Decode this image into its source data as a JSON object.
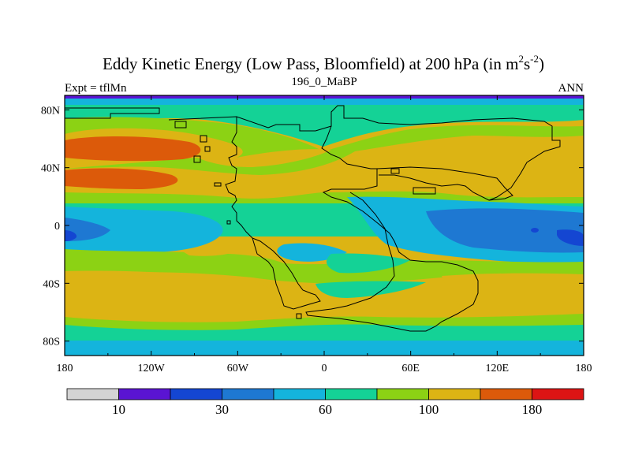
{
  "title": {
    "main": "Eddy Kinetic Energy (Low Pass, Bloomfield) at 200 hPa (in m",
    "sup1": "2",
    "mid": "s",
    "sup2": "-2",
    "close": ")"
  },
  "left_label": "Expt = tflMn",
  "center_label": "196_0_MaBP",
  "right_label": "ANN",
  "map": {
    "projection": "cylindrical equidistant",
    "lon_range": [
      -180,
      180
    ],
    "lat_range": [
      -90,
      90
    ],
    "lon_ticks": [
      {
        "value": -180,
        "label": "180"
      },
      {
        "value": -120,
        "label": "120W"
      },
      {
        "value": -60,
        "label": "60W"
      },
      {
        "value": 0,
        "label": "0"
      },
      {
        "value": 60,
        "label": "60E"
      },
      {
        "value": 120,
        "label": "120E"
      },
      {
        "value": 180,
        "label": "180"
      }
    ],
    "lat_ticks": [
      {
        "value": 80,
        "label": "80N"
      },
      {
        "value": 40,
        "label": "40N"
      },
      {
        "value": 0,
        "label": "0"
      },
      {
        "value": -40,
        "label": "40S"
      },
      {
        "value": -80,
        "label": "80S"
      }
    ]
  },
  "colorbar": {
    "colors": [
      "#d4d4d4",
      "#5a14d2",
      "#1446d2",
      "#1e78d2",
      "#14b4dc",
      "#14d296",
      "#8cd214",
      "#dcb414",
      "#dc5a0a",
      "#dc1414"
    ],
    "levels": [
      10,
      20,
      30,
      40,
      60,
      80,
      100,
      140,
      180
    ],
    "labels": [
      {
        "after_box": 1,
        "text": "10"
      },
      {
        "after_box": 3,
        "text": "30"
      },
      {
        "after_box": 5,
        "text": "60"
      },
      {
        "after_box": 7,
        "text": "100"
      },
      {
        "after_box": 9,
        "text": "180"
      }
    ]
  }
}
